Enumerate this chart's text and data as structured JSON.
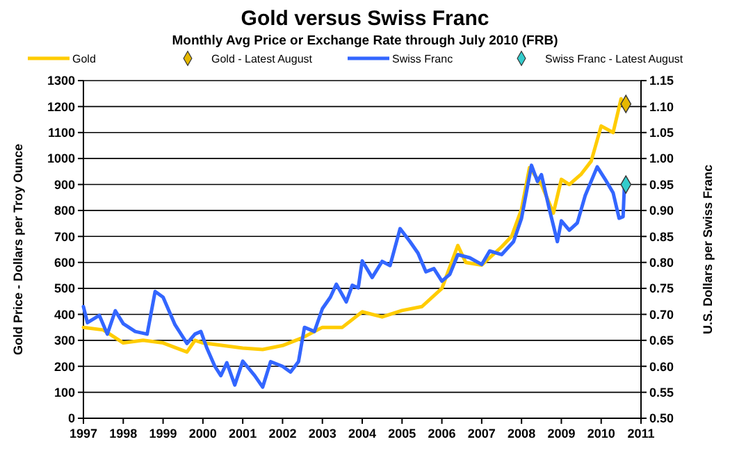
{
  "chart_data": {
    "type": "line",
    "title": "Gold versus Swiss Franc",
    "subtitle": "Monthly Avg Price or Exchange Rate through July 2010 (FRB)",
    "ylabel": "Gold Price - Dollars per Troy Ounce",
    "y2label": "U.S. Dollars per Swiss Franc",
    "xlim": [
      1997,
      2011
    ],
    "xticks": [
      1997,
      1998,
      1999,
      2000,
      2001,
      2002,
      2003,
      2004,
      2005,
      2006,
      2007,
      2008,
      2009,
      2010,
      2011
    ],
    "ylim": [
      0,
      1300
    ],
    "yticks": [
      0,
      100,
      200,
      300,
      400,
      500,
      600,
      700,
      800,
      900,
      1000,
      1100,
      1200,
      1300
    ],
    "y2lim": [
      0.5,
      1.15
    ],
    "y2ticks": [
      {
        "value": 0.5,
        "label": "0.50"
      },
      {
        "value": 0.55,
        "label": "0.55"
      },
      {
        "value": 0.6,
        "label": "0.60"
      },
      {
        "value": 0.65,
        "label": "0.65"
      },
      {
        "value": 0.7,
        "label": "0.70"
      },
      {
        "value": 0.75,
        "label": "0.75"
      },
      {
        "value": 0.8,
        "label": "0.80"
      },
      {
        "value": 0.85,
        "label": "0.85"
      },
      {
        "value": 0.9,
        "label": "0.90"
      },
      {
        "value": 0.95,
        "label": "0.95"
      },
      {
        "value": 1.0,
        "label": "1.00"
      },
      {
        "value": 1.05,
        "label": "1.05"
      },
      {
        "value": 1.1,
        "label": "1.10"
      },
      {
        "value": 1.15,
        "label": "1.15"
      }
    ],
    "grid": "y",
    "legend": "top",
    "line_style": "solid",
    "series": [
      {
        "name": "Gold",
        "color": "#ffcc00",
        "x": [
          1997,
          1997.5,
          1998,
          1998.5,
          1999,
          1999.6,
          1999.8,
          2000,
          2000.5,
          2001,
          2001.5,
          2002,
          2002.5,
          2003,
          2003.5,
          2004,
          2004.5,
          2005,
          2005.5,
          2006,
          2006.4,
          2006.6,
          2007,
          2007.5,
          2007.75,
          2008,
          2008.2,
          2008.5,
          2008.8,
          2009,
          2009.2,
          2009.5,
          2009.75,
          2010,
          2010.3,
          2010.5,
          2010.58
        ],
        "values": [
          350,
          340,
          290,
          300,
          290,
          255,
          300,
          290,
          280,
          270,
          265,
          280,
          310,
          350,
          350,
          410,
          390,
          415,
          430,
          500,
          665,
          600,
          590,
          660,
          700,
          805,
          965,
          900,
          790,
          920,
          900,
          940,
          990,
          1125,
          1100,
          1230,
          1200
        ]
      },
      {
        "name": "Gold - Latest August",
        "type": "scatter",
        "marker": "diamond",
        "color": "#e6b800",
        "x": [
          2010.62
        ],
        "values": [
          1210
        ]
      },
      {
        "name": "Swiss Franc",
        "axis": "y2",
        "color": "#3366ff",
        "x": [
          1997,
          1997.1,
          1997.4,
          1997.6,
          1997.8,
          1998,
          1998.3,
          1998.6,
          1998.8,
          1999,
          1999.3,
          1999.6,
          1999.8,
          1999.95,
          2000.1,
          2000.3,
          2000.45,
          2000.6,
          2000.8,
          2001,
          2001.3,
          2001.5,
          2001.7,
          2002,
          2002.2,
          2002.4,
          2002.55,
          2002.8,
          2003,
          2003.2,
          2003.35,
          2003.6,
          2003.75,
          2003.9,
          2004,
          2004.25,
          2004.5,
          2004.7,
          2004.95,
          2005.2,
          2005.4,
          2005.6,
          2005.8,
          2006,
          2006.2,
          2006.4,
          2006.7,
          2007,
          2007.2,
          2007.5,
          2007.8,
          2008,
          2008.25,
          2008.4,
          2008.5,
          2008.7,
          2008.9,
          2009,
          2009.2,
          2009.4,
          2009.6,
          2009.9,
          2010.1,
          2010.3,
          2010.45,
          2010.55,
          2010.58
        ],
        "values": [
          0.715,
          0.684,
          0.698,
          0.662,
          0.707,
          0.682,
          0.667,
          0.662,
          0.744,
          0.733,
          0.68,
          0.644,
          0.662,
          0.667,
          0.635,
          0.6,
          0.582,
          0.607,
          0.564,
          0.61,
          0.582,
          0.56,
          0.609,
          0.6,
          0.589,
          0.609,
          0.675,
          0.667,
          0.711,
          0.733,
          0.758,
          0.724,
          0.756,
          0.751,
          0.803,
          0.771,
          0.802,
          0.794,
          0.865,
          0.84,
          0.818,
          0.782,
          0.788,
          0.764,
          0.777,
          0.815,
          0.809,
          0.796,
          0.822,
          0.815,
          0.84,
          0.885,
          0.987,
          0.956,
          0.969,
          0.902,
          0.84,
          0.88,
          0.862,
          0.876,
          0.929,
          0.984,
          0.96,
          0.934,
          0.885,
          0.888,
          0.942
        ]
      },
      {
        "name": "Swiss Franc - Latest August",
        "type": "scatter",
        "marker": "diamond",
        "axis": "y2",
        "color": "#33cccc",
        "x": [
          2010.62
        ],
        "values": [
          0.95
        ]
      }
    ]
  }
}
